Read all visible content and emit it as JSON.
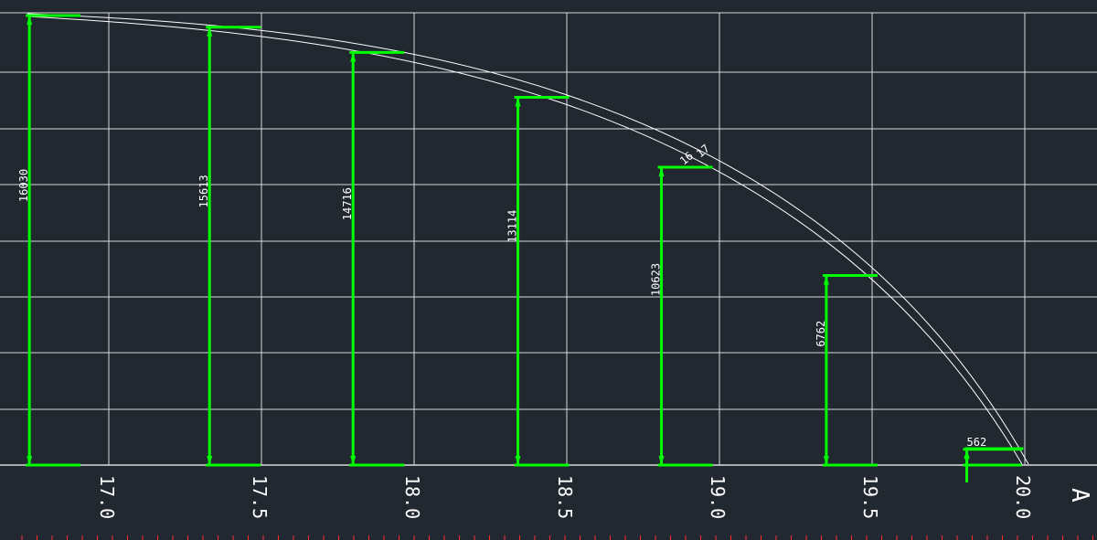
{
  "colors": {
    "background": "#212830",
    "grid": "#d9d9d9",
    "arc": "#ffffff",
    "dimension": "#00ff00",
    "ruler_tick": "#ff2b2b"
  },
  "x_axis": {
    "tick_labels": [
      "17.0",
      "17.5",
      "18.0",
      "18.5",
      "19.0",
      "19.5",
      "20.0"
    ],
    "axis_marker": "A"
  },
  "chart_data": {
    "type": "diagram",
    "title": "",
    "xlabel": "",
    "ylabel": "",
    "xlim": [
      16.75,
      20.25
    ],
    "ylim": [
      0,
      16600
    ],
    "arc_shape": "two concentric arcs ending at x = 20.0",
    "dimension_lines": [
      {
        "x": 16.74,
        "value": 16030,
        "label": "16030"
      },
      {
        "x": 17.33,
        "value": 15613,
        "label": "15613"
      },
      {
        "x": 17.8,
        "value": 14716,
        "label": "14716"
      },
      {
        "x": 18.34,
        "value": 13114,
        "label": "13114"
      },
      {
        "x": 18.81,
        "value": 10623,
        "label": "10623"
      },
      {
        "x": 19.35,
        "value": 6762,
        "label": "6762"
      },
      {
        "x": 19.81,
        "value": 562,
        "label": "562"
      }
    ],
    "arc_labels": [
      "16",
      "17"
    ]
  }
}
